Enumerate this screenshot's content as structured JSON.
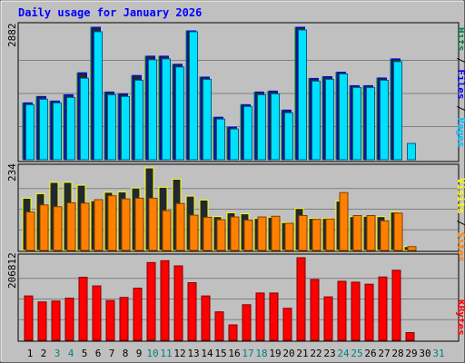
{
  "chart_data": [
    {
      "type": "bar",
      "title": "Daily usage for January 2026",
      "panel": "hits-files-pages",
      "ymax_label": "2882",
      "ylim": [
        0,
        2882
      ],
      "categories": [
        "1",
        "2",
        "3",
        "4",
        "5",
        "6",
        "7",
        "8",
        "9",
        "10",
        "11",
        "12",
        "13",
        "14",
        "15",
        "16",
        "17",
        "18",
        "19",
        "20",
        "21",
        "22",
        "23",
        "24",
        "25",
        "26",
        "27",
        "28",
        "29",
        "30",
        "31"
      ],
      "side_labels": [
        {
          "text": "Hits",
          "color": "#008040"
        },
        {
          "text": "Files",
          "color": "#0000ff"
        },
        {
          "text": "Pages",
          "color": "#00c0ff"
        }
      ],
      "series": [
        {
          "name": "Hits",
          "color": "#008040",
          "values": [
            1236,
            1374,
            1275,
            1413,
            1890,
            2882,
            1472,
            1433,
            1831,
            2252,
            2252,
            2075,
            2803,
            1797,
            923,
            707,
            1197,
            1472,
            1492,
            1079,
            2882,
            1768,
            1807,
            1904,
            1610,
            1610,
            1778,
            2193,
            0,
            0,
            0
          ]
        },
        {
          "name": "Files",
          "color": "#0000ff",
          "values": [
            1236,
            1374,
            1275,
            1413,
            1890,
            2882,
            1472,
            1433,
            1831,
            2252,
            2252,
            2075,
            2803,
            1797,
            923,
            707,
            1197,
            1472,
            1492,
            1079,
            2882,
            1768,
            1807,
            1904,
            1610,
            1610,
            1778,
            2193,
            0,
            0,
            0
          ]
        },
        {
          "name": "Pages",
          "color": "#00e0ff",
          "values": [
            1197,
            1315,
            1236,
            1354,
            1772,
            2784,
            1413,
            1374,
            1728,
            2174,
            2193,
            2016,
            2784,
            1748,
            884,
            668,
            1158,
            1413,
            1433,
            1020,
            2823,
            1709,
            1748,
            1866,
            1571,
            1571,
            1728,
            2134,
            354,
            0,
            0
          ]
        }
      ]
    },
    {
      "type": "bar",
      "panel": "visits-sites",
      "ymax_label": "234",
      "ylim": [
        0,
        234
      ],
      "categories": [
        "1",
        "2",
        "3",
        "4",
        "5",
        "6",
        "7",
        "8",
        "9",
        "10",
        "11",
        "12",
        "13",
        "14",
        "15",
        "16",
        "17",
        "18",
        "19",
        "20",
        "21",
        "22",
        "23",
        "24",
        "25",
        "26",
        "27",
        "28",
        "29",
        "30",
        "31"
      ],
      "side_labels": [
        {
          "text": "Visits",
          "color": "#ffff00"
        },
        {
          "text": "Sites",
          "color": "#ff8000"
        }
      ],
      "series": [
        {
          "name": "Visits",
          "color": "#ffff00",
          "values": [
            148,
            161,
            193,
            193,
            185,
            141,
            165,
            166,
            177,
            234,
            179,
            202,
            154,
            143,
            96,
            107,
            104,
            91,
            94,
            79,
            119,
            91,
            91,
            140,
            96,
            97,
            96,
            109,
            11,
            0,
            0
          ]
        },
        {
          "name": "Sites",
          "color": "#ff8000",
          "values": [
            109,
            129,
            124,
            135,
            134,
            144,
            155,
            146,
            148,
            148,
            113,
            133,
            100,
            94,
            87,
            95,
            86,
            95,
            97,
            77,
            99,
            88,
            89,
            164,
            99,
            99,
            84,
            106,
            11,
            0,
            0
          ]
        }
      ]
    },
    {
      "type": "bar",
      "panel": "kbytes",
      "ymax_label": "206812",
      "ylim": [
        0,
        206812
      ],
      "categories": [
        "1",
        "2",
        "3",
        "4",
        "5",
        "6",
        "7",
        "8",
        "9",
        "10",
        "11",
        "12",
        "13",
        "14",
        "15",
        "16",
        "17",
        "18",
        "19",
        "20",
        "21",
        "22",
        "23",
        "24",
        "25",
        "26",
        "27",
        "28",
        "29",
        "30",
        "31"
      ],
      "side_labels": [
        {
          "text": "KBytes",
          "color": "#ff0000"
        }
      ],
      "series": [
        {
          "name": "KBytes",
          "color": "#ff0000",
          "values": [
            111100,
            96100,
            98300,
            105400,
            157800,
            136200,
            99600,
            107400,
            130600,
            194700,
            199400,
            186400,
            144300,
            111100,
            71300,
            38600,
            89100,
            118400,
            118400,
            80200,
            206812,
            152300,
            108800,
            147800,
            145600,
            140500,
            158600,
            175500,
            19300,
            0,
            0
          ]
        }
      ]
    }
  ],
  "x_label_colors": [
    "#000000",
    "#000000",
    "#008080",
    "#008080",
    "#000000",
    "#000000",
    "#000000",
    "#000000",
    "#000000",
    "#008080",
    "#008080",
    "#000000",
    "#000000",
    "#000000",
    "#000000",
    "#000000",
    "#008080",
    "#008080",
    "#000000",
    "#000000",
    "#000000",
    "#000000",
    "#000000",
    "#008080",
    "#008080",
    "#000000",
    "#000000",
    "#000000",
    "#000000",
    "#000000",
    "#008080"
  ],
  "colors": {
    "background": "#c0c0c0",
    "plot_background": "#c0c0c0",
    "grid": "#808080",
    "title": "#0000ff"
  }
}
